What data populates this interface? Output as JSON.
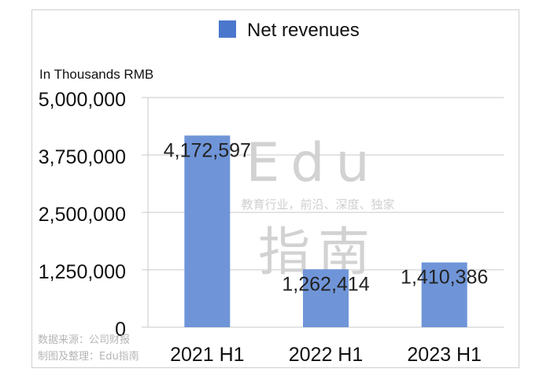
{
  "chart_data": {
    "type": "bar",
    "categories": [
      "2021 H1",
      "2022 H1",
      "2023 H1"
    ],
    "series": [
      {
        "name": "Net revenues",
        "values": [
          4172597,
          1262414,
          1410386
        ],
        "color": "#6f95d8"
      }
    ],
    "data_labels": [
      "4,172,597",
      "1,262,414",
      "1,410,386"
    ],
    "ylabel": "In Thousands RMB",
    "yticks": [
      "0",
      "1,250,000",
      "2,500,000",
      "3,750,000",
      "5,000,000"
    ],
    "ytick_values": [
      0,
      1250000,
      2500000,
      3750000,
      5000000
    ],
    "ylim": [
      0,
      5000000
    ],
    "grid": true,
    "legend_position": "top",
    "legend_swatch_color": "#4a77cc"
  },
  "watermark": {
    "brand": "Edu",
    "tagline": "教育行业，前沿、深度、独家",
    "chinese_name": "指南"
  },
  "source": {
    "line1": "数据来源：公司财报",
    "line2": "制图及整理：Edu指南"
  }
}
